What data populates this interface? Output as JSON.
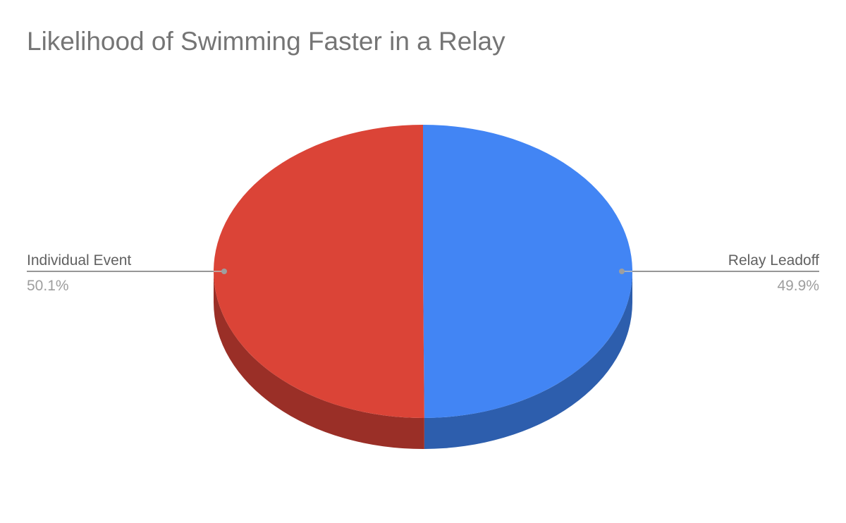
{
  "chart_data": {
    "type": "pie",
    "title": "Likelihood of Swimming Faster in a Relay",
    "three_d": true,
    "legend": "none",
    "slices": [
      {
        "label": "Relay Leadoff",
        "value": 49.9,
        "percent_label": "49.9%",
        "color": "#4285f4",
        "side_color": "#2d5ead"
      },
      {
        "label": "Individual Event",
        "value": 50.1,
        "percent_label": "50.1%",
        "color": "#db4437",
        "side_color": "#9a2f27"
      }
    ]
  }
}
